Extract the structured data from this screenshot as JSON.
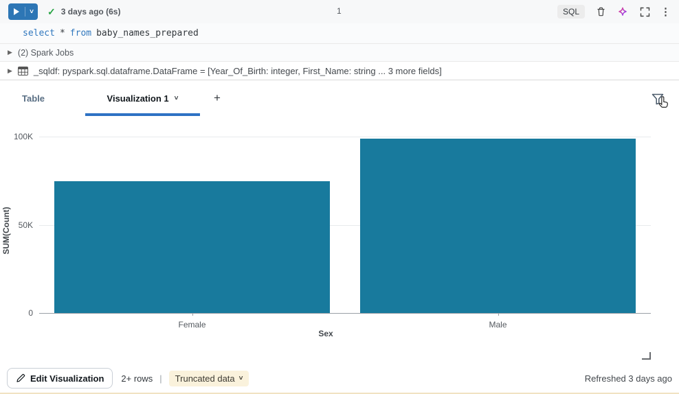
{
  "toolbar": {
    "last_run": "3 days ago (6s)",
    "cell_number": "1",
    "language_badge": "SQL"
  },
  "code": {
    "kw_select": "select",
    "star": "*",
    "kw_from": "from",
    "table_name": "baby_names_prepared"
  },
  "spark_jobs": {
    "label": "(2) Spark Jobs"
  },
  "sqldf": {
    "label": "_sqldf:  pyspark.sql.dataframe.DataFrame = [Year_Of_Birth: integer, First_Name: string ... 3 more fields]"
  },
  "tabs": {
    "table_label": "Table",
    "viz_label": "Visualization 1",
    "add_label": "+"
  },
  "chart_data": {
    "type": "bar",
    "title": "",
    "categories": [
      "Female",
      "Male"
    ],
    "values": [
      74700,
      98800
    ],
    "xlabel": "Sex",
    "ylabel": "SUM(Count)",
    "ylim": [
      0,
      100000
    ],
    "yticks": {
      "values": [
        0,
        50000,
        100000
      ],
      "labels": [
        "0",
        "50K",
        "100K"
      ]
    },
    "grid": "horizontal",
    "legend": "none",
    "bar_color": "#187A9D"
  },
  "footer": {
    "edit_button": "Edit Visualization",
    "rows_label": "2+ rows",
    "divider": "|",
    "truncated_label": "Truncated data",
    "refreshed_label": "Refreshed 3 days ago"
  },
  "colors": {
    "accent_blue": "#2D76B5",
    "tab_underline": "#2E72C4",
    "bar": "#187A9D",
    "badge_bg": "#FAF2DC",
    "keyword": "#3178BE",
    "check_green": "#27A444"
  }
}
